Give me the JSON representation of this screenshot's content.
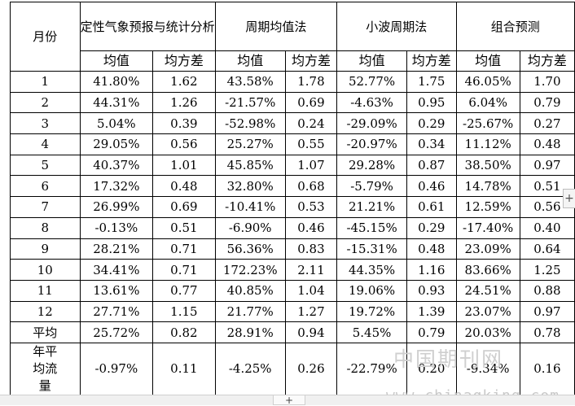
{
  "table": {
    "month_header": "月份",
    "methods": [
      "定性气象预报与统计分析",
      "周期均值法",
      "小波周期法",
      "组合预测"
    ],
    "sub_headers": [
      "均值",
      "均方差"
    ],
    "rows": [
      [
        "1",
        "41.80%",
        "1.62",
        "43.58%",
        "1.78",
        "52.77%",
        "1.75",
        "46.05%",
        "1.70"
      ],
      [
        "2",
        "44.31%",
        "1.26",
        "-21.57%",
        "0.69",
        "-4.63%",
        "0.95",
        "6.04%",
        "0.79"
      ],
      [
        "3",
        "5.04%",
        "0.39",
        "-52.98%",
        "0.24",
        "-29.09%",
        "0.29",
        "-25.67%",
        "0.27"
      ],
      [
        "4",
        "29.05%",
        "0.56",
        "25.27%",
        "0.55",
        "-20.97%",
        "0.34",
        "11.12%",
        "0.48"
      ],
      [
        "5",
        "40.37%",
        "1.01",
        "45.85%",
        "1.07",
        "29.28%",
        "0.87",
        "38.50%",
        "0.97"
      ],
      [
        "6",
        "17.32%",
        "0.48",
        "32.80%",
        "0.68",
        "-5.79%",
        "0.46",
        "14.78%",
        "0.51"
      ],
      [
        "7",
        "26.99%",
        "0.69",
        "-10.41%",
        "0.53",
        "21.21%",
        "0.61",
        "12.59%",
        "0.56"
      ],
      [
        "8",
        "-0.13%",
        "0.51",
        "-6.90%",
        "0.46",
        "-45.15%",
        "0.29",
        "-17.40%",
        "0.40"
      ],
      [
        "9",
        "28.21%",
        "0.71",
        "56.36%",
        "0.83",
        "-15.31%",
        "0.48",
        "23.09%",
        "0.64"
      ],
      [
        "10",
        "34.41%",
        "0.71",
        "172.23%",
        "2.11",
        "44.35%",
        "1.16",
        "83.66%",
        "1.25"
      ],
      [
        "11",
        "13.61%",
        "0.77",
        "40.85%",
        "1.04",
        "19.06%",
        "0.93",
        "24.51%",
        "0.88"
      ],
      [
        "12",
        "27.71%",
        "1.15",
        "21.77%",
        "1.27",
        "19.72%",
        "1.39",
        "23.07%",
        "0.97"
      ],
      [
        "平均",
        "25.72%",
        "0.82",
        "28.91%",
        "0.94",
        "5.45%",
        "0.79",
        "20.03%",
        "0.78"
      ],
      [
        "年平均流量",
        "-0.97%",
        "0.11",
        "-4.25%",
        "0.26",
        "-22.79%",
        "0.20",
        "-9.34%",
        "0.16"
      ]
    ]
  },
  "watermark": {
    "text": "中国期刊网",
    "url": "www.chinaqking.com"
  },
  "ui": {
    "side_plus": "+",
    "bottom_tab": "+"
  }
}
